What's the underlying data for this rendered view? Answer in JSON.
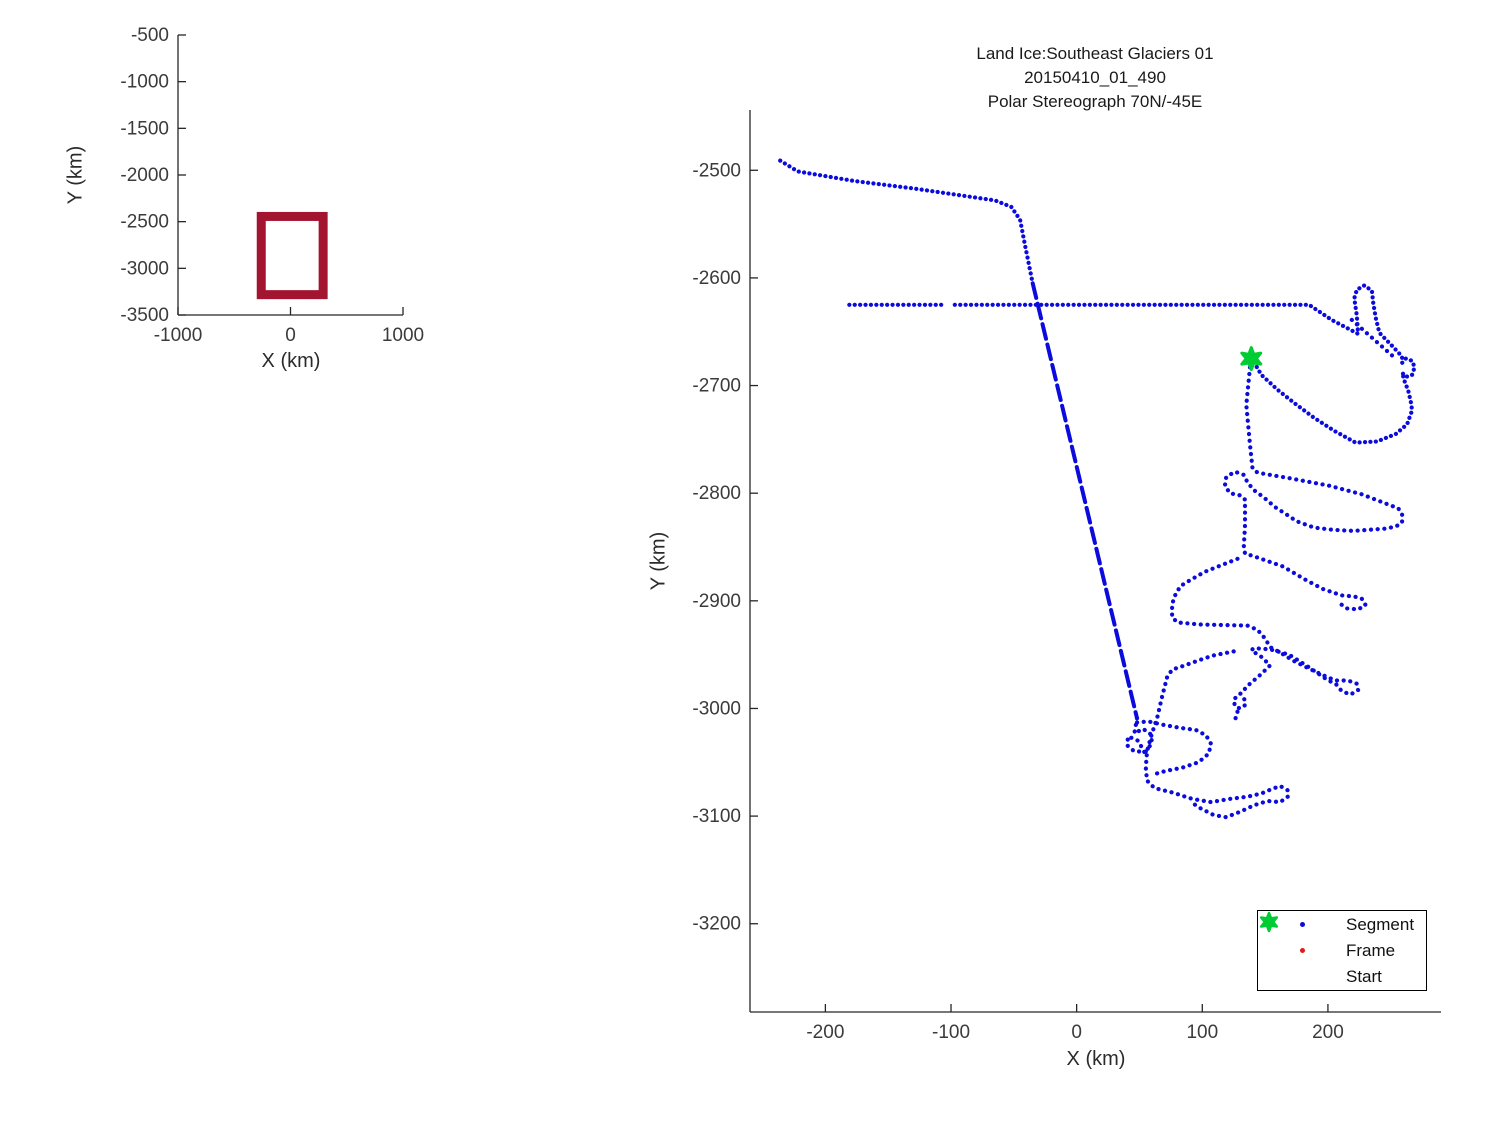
{
  "colors": {
    "segment": "#0b0bdd",
    "frame": "#e31a1a",
    "start": "#00cc33",
    "coverage_box": "#A2142F",
    "axis": "#262626",
    "tick_text": "#3b3b3b"
  },
  "chart_data": [
    {
      "id": "overview-locator",
      "type": "line",
      "title": "",
      "xlabel": "X (km)",
      "ylabel": "Y (km)",
      "xlim": [
        -1000,
        1000
      ],
      "ylim": [
        -3500,
        -500
      ],
      "xticks": [
        -1000,
        0,
        1000
      ],
      "yticks": [
        -500,
        -1000,
        -1500,
        -2000,
        -2500,
        -3000,
        -3500
      ],
      "grid": false,
      "series": [
        {
          "name": "coverage-box",
          "shape": "rectangle",
          "x": [
            -260,
            290
          ],
          "y": [
            -3282,
            -2444
          ],
          "color": "#A2142F",
          "linewidth": 9
        }
      ]
    },
    {
      "id": "flight-track",
      "type": "scatter",
      "title_lines": [
        "Land Ice:Southeast Glaciers 01",
        "20150410_01_490",
        "Polar Stereograph 70N/-45E"
      ],
      "xlabel": "X (km)",
      "ylabel": "Y (km)",
      "xlim": [
        -260,
        290
      ],
      "ylim": [
        -3282,
        -2444
      ],
      "xticks": [
        -200,
        -100,
        0,
        100,
        200
      ],
      "yticks": [
        -2500,
        -2600,
        -2700,
        -2800,
        -2900,
        -3000,
        -3100,
        -3200
      ],
      "grid": false,
      "legend_position": "lower right",
      "legend": [
        {
          "label": "Segment",
          "marker": "dot",
          "color": "#0b0bdd"
        },
        {
          "label": "Frame",
          "marker": "dot",
          "color": "#e31a1a"
        },
        {
          "label": "Start",
          "marker": "hexagram",
          "color": "#00cc33"
        }
      ],
      "start_point": {
        "x": 139,
        "y": -2675
      },
      "segment_strokes": [
        {
          "style": "dense",
          "pts": [
            [
              -236,
              -2491
            ],
            [
              -222,
              -2501
            ],
            [
              -177,
              -2510
            ],
            [
              -129,
              -2517
            ],
            [
              -65,
              -2528
            ],
            [
              -52,
              -2534
            ],
            [
              -45,
              -2546
            ],
            [
              -41,
              -2570
            ],
            [
              -35,
              -2605
            ]
          ]
        },
        {
          "style": "dash",
          "pts": [
            [
              -35,
              -2605
            ],
            [
              48,
              -3009
            ]
          ]
        },
        {
          "style": "dots",
          "pts": [
            [
              48,
              -3009
            ],
            [
              46,
              -3023
            ],
            [
              53,
              -3019
            ],
            [
              59,
              -3024
            ],
            [
              60,
              -3032
            ],
            [
              55,
              -3040
            ],
            [
              46,
              -3040
            ],
            [
              40,
              -3034
            ],
            [
              41,
              -3026
            ],
            [
              49,
              -3030
            ],
            [
              56,
              -3045
            ]
          ]
        },
        {
          "style": "dense",
          "pts": [
            [
              -181,
              -2625
            ],
            [
              -106,
              -2625
            ]
          ]
        },
        {
          "style": "dense",
          "pts": [
            [
              -97,
              -2625
            ],
            [
              185,
              -2625
            ],
            [
              203,
              -2639
            ],
            [
              216,
              -2647
            ],
            [
              224,
              -2652
            ],
            [
              223,
              -2635
            ],
            [
              221,
              -2619
            ],
            [
              223,
              -2611
            ],
            [
              229,
              -2607
            ],
            [
              235,
              -2612
            ],
            [
              236,
              -2623
            ],
            [
              238,
              -2637
            ],
            [
              241,
              -2651
            ],
            [
              246,
              -2657
            ],
            [
              251,
              -2663
            ],
            [
              255,
              -2668
            ],
            [
              259,
              -2673
            ],
            [
              259,
              -2679
            ],
            [
              262,
              -2675
            ],
            [
              267,
              -2677
            ],
            [
              269,
              -2683
            ],
            [
              267,
              -2690
            ],
            [
              262,
              -2692
            ],
            [
              259,
              -2688
            ],
            [
              261,
              -2696
            ],
            [
              264,
              -2705
            ],
            [
              266,
              -2715
            ],
            [
              267,
              -2723
            ],
            [
              263,
              -2736
            ],
            [
              254,
              -2745
            ],
            [
              239,
              -2752
            ],
            [
              222,
              -2753
            ],
            [
              205,
              -2742
            ],
            [
              189,
              -2730
            ],
            [
              174,
              -2717
            ],
            [
              160,
              -2704
            ],
            [
              147,
              -2690
            ],
            [
              141,
              -2678
            ]
          ]
        },
        {
          "style": "dots",
          "pts": [
            [
              219,
              -2639
            ],
            [
              251,
              -2672
            ]
          ]
        },
        {
          "style": "dots",
          "pts": [
            [
              138,
              -2683
            ],
            [
              135,
              -2718
            ],
            [
              138,
              -2755
            ],
            [
              140,
              -2777
            ],
            [
              144,
              -2781
            ],
            [
              169,
              -2786
            ],
            [
              201,
              -2793
            ],
            [
              227,
              -2801
            ],
            [
              249,
              -2811
            ],
            [
              256,
              -2814
            ],
            [
              259,
              -2820
            ],
            [
              259,
              -2827
            ],
            [
              254,
              -2831
            ],
            [
              245,
              -2833
            ],
            [
              220,
              -2835
            ],
            [
              204,
              -2834
            ],
            [
              189,
              -2832
            ],
            [
              175,
              -2826
            ],
            [
              166,
              -2819
            ],
            [
              158,
              -2813
            ],
            [
              149,
              -2804
            ],
            [
              141,
              -2797
            ],
            [
              136,
              -2790
            ],
            [
              133,
              -2783
            ],
            [
              126,
              -2780
            ],
            [
              119,
              -2785
            ],
            [
              118,
              -2793
            ],
            [
              122,
              -2800
            ],
            [
              130,
              -2802
            ],
            [
              134,
              -2806
            ],
            [
              134,
              -2830
            ],
            [
              133,
              -2850
            ],
            [
              134,
              -2856
            ],
            [
              142,
              -2859
            ],
            [
              164,
              -2868
            ],
            [
              183,
              -2881
            ],
            [
              196,
              -2889
            ],
            [
              211,
              -2895
            ],
            [
              221,
              -2896
            ],
            [
              227,
              -2898
            ],
            [
              230,
              -2904
            ],
            [
              224,
              -2908
            ],
            [
              215,
              -2907
            ],
            [
              209,
              -2902
            ]
          ]
        },
        {
          "style": "dots",
          "pts": [
            [
              128,
              -2861
            ],
            [
              115,
              -2867
            ],
            [
              102,
              -2873
            ],
            [
              90,
              -2881
            ],
            [
              83,
              -2886
            ],
            [
              79,
              -2893
            ],
            [
              76,
              -2903
            ],
            [
              76,
              -2915
            ],
            [
              80,
              -2920
            ],
            [
              98,
              -2922
            ],
            [
              136,
              -2923
            ],
            [
              144,
              -2927
            ],
            [
              150,
              -2935
            ],
            [
              154,
              -2943
            ],
            [
              162,
              -2948
            ],
            [
              173,
              -2956
            ],
            [
              185,
              -2963
            ],
            [
              196,
              -2969
            ],
            [
              206,
              -2974
            ],
            [
              216,
              -2974
            ],
            [
              223,
              -2977
            ],
            [
              224,
              -2983
            ],
            [
              218,
              -2987
            ],
            [
              211,
              -2984
            ],
            [
              207,
              -2978
            ],
            [
              199,
              -2973
            ],
            [
              184,
              -2961
            ],
            [
              169,
              -2950
            ],
            [
              154,
              -2945
            ],
            [
              141,
              -2944
            ],
            [
              139,
              -2946
            ],
            [
              147,
              -2952
            ],
            [
              154,
              -2960
            ],
            [
              147,
              -2968
            ],
            [
              139,
              -2976
            ],
            [
              135,
              -2980
            ],
            [
              132,
              -2985
            ],
            [
              128,
              -2988
            ],
            [
              125,
              -2992
            ],
            [
              126,
              -2998
            ],
            [
              130,
              -3000
            ],
            [
              134,
              -2997
            ],
            [
              134,
              -2992
            ],
            [
              130,
              -2988
            ]
          ]
        },
        {
          "style": "dots",
          "pts": [
            [
              128,
              -3003
            ],
            [
              127,
              -3008
            ],
            [
              125,
              -3012
            ]
          ]
        },
        {
          "style": "dots",
          "pts": [
            [
              125,
              -2947
            ],
            [
              108,
              -2951
            ],
            [
              98,
              -2955
            ],
            [
              86,
              -2960
            ],
            [
              76,
              -2964
            ],
            [
              72,
              -2971
            ],
            [
              68,
              -2989
            ],
            [
              64,
              -3009
            ],
            [
              60,
              -3023
            ],
            [
              56,
              -3040
            ],
            [
              55,
              -3055
            ],
            [
              56,
              -3067
            ],
            [
              62,
              -3074
            ],
            [
              76,
              -3078
            ],
            [
              92,
              -3084
            ],
            [
              107,
              -3087
            ],
            [
              122,
              -3084
            ],
            [
              136,
              -3082
            ],
            [
              147,
              -3079
            ],
            [
              155,
              -3075
            ],
            [
              162,
              -3072
            ],
            [
              168,
              -3076
            ],
            [
              168,
              -3082
            ],
            [
              162,
              -3087
            ],
            [
              152,
              -3086
            ],
            [
              141,
              -3090
            ],
            [
              130,
              -3096
            ],
            [
              119,
              -3101
            ],
            [
              109,
              -3099
            ],
            [
              99,
              -3093
            ],
            [
              91,
              -3087
            ]
          ]
        },
        {
          "style": "dots",
          "pts": [
            [
              48,
              -3013
            ],
            [
              57,
              -3012
            ],
            [
              68,
              -3015
            ],
            [
              82,
              -3018
            ],
            [
              95,
              -3020
            ],
            [
              103,
              -3025
            ],
            [
              107,
              -3033
            ],
            [
              105,
              -3042
            ],
            [
              97,
              -3050
            ],
            [
              84,
              -3055
            ],
            [
              71,
              -3058
            ],
            [
              62,
              -3061
            ]
          ]
        }
      ]
    }
  ]
}
